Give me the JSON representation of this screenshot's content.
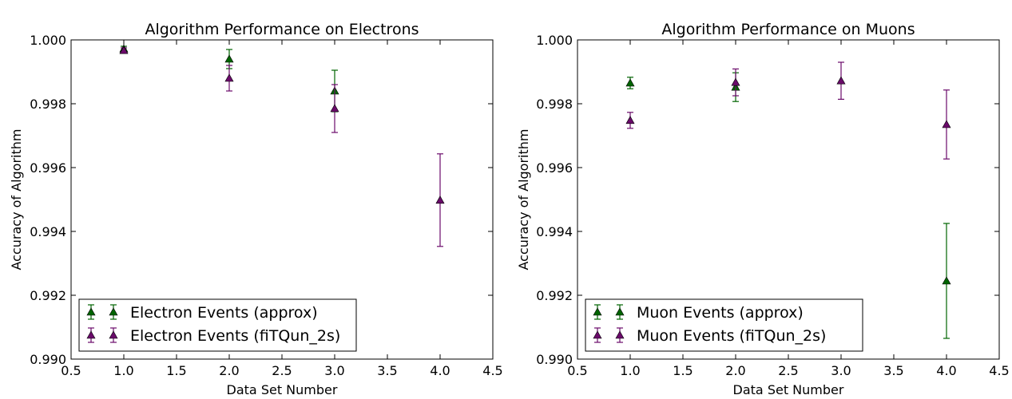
{
  "chart_data": [
    {
      "type": "scatter",
      "title": "Algorithm Performance on Electrons",
      "xlabel": "Data Set Number",
      "ylabel": "Accuracy of Algorithm",
      "xlim": [
        0.5,
        4.5
      ],
      "ylim": [
        0.99,
        1.0
      ],
      "xticks": [
        "0.5",
        "1.0",
        "1.5",
        "2.0",
        "2.5",
        "3.0",
        "3.5",
        "4.0",
        "4.5"
      ],
      "yticks": [
        "0.990",
        "0.992",
        "0.994",
        "0.996",
        "0.998",
        "1.000"
      ],
      "grid": false,
      "legend_position": "lower-left",
      "series": [
        {
          "name": "Electron Events (approx)",
          "color": "#006400",
          "marker": "triangle-up",
          "x": [
            1,
            2,
            3
          ],
          "y": [
            0.99972,
            0.9994,
            0.9984
          ],
          "yerr": [
            8e-05,
            0.0003,
            0.00065
          ]
        },
        {
          "name": "Electron Events (fiTQun_2s)",
          "color": "#6a0a6a",
          "marker": "triangle-up",
          "x": [
            1,
            2,
            3,
            4
          ],
          "y": [
            0.99967,
            0.9988,
            0.99785,
            0.99498
          ],
          "yerr": [
            8e-05,
            0.0004,
            0.00075,
            0.00145
          ]
        }
      ]
    },
    {
      "type": "scatter",
      "title": "Algorithm Performance on Muons",
      "xlabel": "Data Set Number",
      "ylabel": "Accuracy of Algorithm",
      "xlim": [
        0.5,
        4.5
      ],
      "ylim": [
        0.99,
        1.0
      ],
      "xticks": [
        "0.5",
        "1.0",
        "1.5",
        "2.0",
        "2.5",
        "3.0",
        "3.5",
        "4.0",
        "4.5"
      ],
      "yticks": [
        "0.990",
        "0.992",
        "0.994",
        "0.996",
        "0.998",
        "1.000"
      ],
      "grid": false,
      "legend_position": "lower-left",
      "series": [
        {
          "name": "Muon Events (approx)",
          "color": "#006400",
          "marker": "triangle-up",
          "x": [
            1,
            2,
            4
          ],
          "y": [
            0.99865,
            0.99852,
            0.99245
          ],
          "yerr": [
            0.00018,
            0.00045,
            0.0018
          ]
        },
        {
          "name": "Muon Events (fiTQun_2s)",
          "color": "#6a0a6a",
          "marker": "triangle-up",
          "x": [
            1,
            2,
            3,
            4
          ],
          "y": [
            0.99748,
            0.99867,
            0.99872,
            0.99735
          ],
          "yerr": [
            0.00025,
            0.00042,
            0.00058,
            0.00108
          ]
        }
      ]
    }
  ]
}
